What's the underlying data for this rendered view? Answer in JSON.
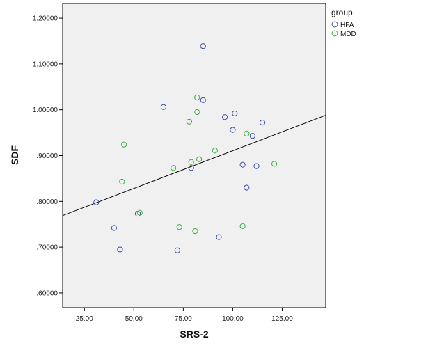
{
  "chart_data": {
    "type": "scatter",
    "xlabel": "SRS-2",
    "ylabel": "SDF",
    "xlim": [
      14,
      147
    ],
    "ylim": [
      0.568,
      1.232
    ],
    "x_ticks": [
      25,
      50,
      75,
      100,
      125
    ],
    "x_tick_labels": [
      "25.00",
      "50.00",
      "75.00",
      "100.00",
      "125.00"
    ],
    "y_ticks": [
      0.6,
      0.7,
      0.8,
      0.9,
      1.0,
      1.1,
      1.2
    ],
    "y_tick_labels": [
      ".60000",
      ".70000",
      ".80000",
      ".90000",
      "1.00000",
      "1.10000",
      "1.20000"
    ],
    "grid": false,
    "legend": {
      "title": "group",
      "position": "right",
      "entries": [
        "HFA",
        "MDD"
      ]
    },
    "fit_line": {
      "x": [
        14,
        147
      ],
      "y": [
        0.769,
        0.988
      ]
    },
    "colors": {
      "HFA": "#3b4ea8",
      "MDD": "#3fb03f",
      "plot_bg": "#f0f0f0",
      "line": "#000000"
    },
    "series": [
      {
        "name": "HFA",
        "points": [
          {
            "x": 31,
            "y": 0.798
          },
          {
            "x": 40,
            "y": 0.742
          },
          {
            "x": 43,
            "y": 0.695
          },
          {
            "x": 52,
            "y": 0.773
          },
          {
            "x": 65,
            "y": 1.006
          },
          {
            "x": 72,
            "y": 0.693
          },
          {
            "x": 79,
            "y": 0.873
          },
          {
            "x": 85,
            "y": 1.139
          },
          {
            "x": 85,
            "y": 1.021
          },
          {
            "x": 93,
            "y": 0.722
          },
          {
            "x": 96,
            "y": 0.984
          },
          {
            "x": 100,
            "y": 0.956
          },
          {
            "x": 101,
            "y": 0.992
          },
          {
            "x": 105,
            "y": 0.88
          },
          {
            "x": 107,
            "y": 0.83
          },
          {
            "x": 110,
            "y": 0.943
          },
          {
            "x": 112,
            "y": 0.877
          },
          {
            "x": 115,
            "y": 0.972
          }
        ]
      },
      {
        "name": "MDD",
        "points": [
          {
            "x": 44,
            "y": 0.843
          },
          {
            "x": 45,
            "y": 0.924
          },
          {
            "x": 53,
            "y": 0.775
          },
          {
            "x": 70,
            "y": 0.873
          },
          {
            "x": 73,
            "y": 0.744
          },
          {
            "x": 78,
            "y": 0.974
          },
          {
            "x": 79,
            "y": 0.886
          },
          {
            "x": 81,
            "y": 0.735
          },
          {
            "x": 82,
            "y": 1.027
          },
          {
            "x": 82,
            "y": 0.995
          },
          {
            "x": 83,
            "y": 0.892
          },
          {
            "x": 91,
            "y": 0.911
          },
          {
            "x": 105,
            "y": 0.746
          },
          {
            "x": 107,
            "y": 0.948
          },
          {
            "x": 121,
            "y": 0.882
          }
        ]
      }
    ]
  }
}
